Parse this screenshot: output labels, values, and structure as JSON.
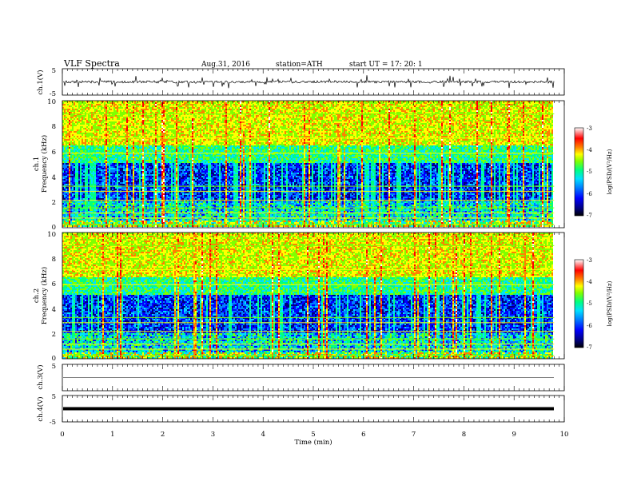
{
  "header": {
    "title": "VLF  Spectra",
    "date": "Aug.31, 2016",
    "station": "station=ATH",
    "start": "start  UT  =    17: 20: 1"
  },
  "panels": {
    "ch1_wave_label": "ch.1(V)",
    "ch1_spec_label": "ch.1",
    "ch2_spec_label": "ch.2",
    "ch3_wave_label": "ch.3(V)",
    "ch4_wave_label": "ch.4(V)",
    "freq_label": "Frequency  (kHz)",
    "x_label": "Time  (min)",
    "colorbar_label": "log(PSD/(V²/Hz)"
  },
  "chart_data": [
    {
      "type": "line",
      "panel": "ch1-waveform",
      "ylabel": "ch.1(V)",
      "ylim": [
        -5,
        5
      ],
      "yticks": [
        "5",
        "-5"
      ],
      "xlim": [
        0,
        10
      ],
      "trace_level_V": 0,
      "trace_noise_amplitude_V": 2.5
    },
    {
      "type": "heatmap",
      "panel": "ch1-spectrogram",
      "ylabel": "Frequency  (kHz)",
      "series_label": "ch.1",
      "xlim": [
        0,
        10
      ],
      "data_end_min": 9.8,
      "ylim": [
        0,
        10
      ],
      "yticks": [
        "0",
        "2",
        "4",
        "6",
        "8",
        "10"
      ],
      "colorbar": {
        "label": "log(PSD/(V²/Hz)",
        "range": [
          -7,
          -3
        ],
        "ticks": [
          "-3",
          "-4",
          "-5",
          "-6",
          "-7"
        ]
      }
    },
    {
      "type": "heatmap",
      "panel": "ch2-spectrogram",
      "ylabel": "Frequency  (kHz)",
      "series_label": "ch.2",
      "xlim": [
        0,
        10
      ],
      "data_end_min": 9.8,
      "ylim": [
        0,
        10
      ],
      "yticks": [
        "0",
        "2",
        "4",
        "6",
        "8",
        "10"
      ],
      "colorbar": {
        "label": "log(PSD/(V²/Hz)",
        "range": [
          -7,
          -3
        ],
        "ticks": [
          "-3",
          "-4",
          "-5",
          "-6",
          "-7"
        ]
      }
    },
    {
      "type": "line",
      "panel": "ch3-waveform",
      "ylabel": "ch.3(V)",
      "ylim": [
        -5,
        5
      ],
      "yticks": [
        "5"
      ],
      "xlim": [
        0,
        10
      ],
      "trace_level_V": 0
    },
    {
      "type": "line",
      "panel": "ch4-waveform",
      "ylabel": "ch.4(V)",
      "ylim": [
        -5,
        5
      ],
      "yticks": [
        "5",
        "-5"
      ],
      "xlim": [
        0,
        10
      ],
      "trace_level_V": 0
    }
  ],
  "x_axis": {
    "label": "Time  (min)",
    "ticks": [
      "0",
      "1",
      "2",
      "3",
      "4",
      "5",
      "6",
      "7",
      "8",
      "9",
      "10"
    ]
  },
  "colors": {
    "colormap": [
      "#000000",
      "#00007a",
      "#0000ff",
      "#0080ff",
      "#00e0ff",
      "#00ff80",
      "#80ff00",
      "#ffff00",
      "#ff8000",
      "#ff0000",
      "#ffffff"
    ]
  }
}
